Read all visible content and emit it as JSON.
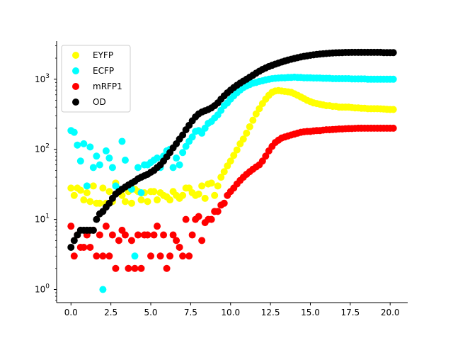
{
  "chart_data": {
    "type": "scatter",
    "title": "",
    "xlabel": "",
    "ylabel": "",
    "x_scale": "linear",
    "y_scale": "log",
    "xlim": [
      -0.9,
      21.1
    ],
    "ylim": [
      0.65,
      3500
    ],
    "x_ticks": [
      {
        "value": 0,
        "label": "0.0"
      },
      {
        "value": 2.5,
        "label": "2.5"
      },
      {
        "value": 5,
        "label": "5.0"
      },
      {
        "value": 7.5,
        "label": "7.5"
      },
      {
        "value": 10,
        "label": "10.0"
      },
      {
        "value": 12.5,
        "label": "12.5"
      },
      {
        "value": 15,
        "label": "15.0"
      },
      {
        "value": 17.5,
        "label": "17.5"
      },
      {
        "value": 20,
        "label": "20.0"
      }
    ],
    "y_ticks": [
      {
        "value": 1,
        "base": "10",
        "exp": "0"
      },
      {
        "value": 10,
        "base": "10",
        "exp": "1"
      },
      {
        "value": 100,
        "base": "10",
        "exp": "2"
      },
      {
        "value": 1000,
        "base": "10",
        "exp": "3"
      }
    ],
    "grid": false,
    "legend_position": "upper-left",
    "series": [
      {
        "name": "EYFP",
        "color": "#ffff00",
        "x": [
          0.0,
          0.2,
          0.4,
          0.6,
          0.8,
          1.0,
          1.2,
          1.4,
          1.6,
          1.8,
          2.0,
          2.2,
          2.4,
          2.6,
          2.8,
          3.0,
          3.2,
          3.4,
          3.6,
          3.8,
          4.0,
          4.2,
          4.4,
          4.6,
          4.8,
          5.0,
          5.2,
          5.4,
          5.6,
          5.8,
          6.0,
          6.2,
          6.4,
          6.6,
          6.8,
          7.0,
          7.2,
          7.4,
          7.6,
          7.8,
          8.0,
          8.2,
          8.4,
          8.6,
          8.8,
          9.0,
          9.2,
          9.4,
          9.6,
          9.8,
          10.0,
          10.2,
          10.4,
          10.6,
          10.8,
          11.0,
          11.2,
          11.4,
          11.6,
          11.8,
          12.0,
          12.2,
          12.4,
          12.6,
          12.8,
          13.0,
          13.2,
          13.4,
          13.6,
          13.8,
          14.0,
          14.2,
          14.4,
          14.6,
          14.8,
          15.0,
          15.2,
          15.4,
          15.6,
          15.8,
          16.0,
          16.2,
          16.4,
          16.6,
          16.8,
          17.0,
          17.2,
          17.4,
          17.6,
          17.8,
          18.0,
          18.2,
          18.4,
          18.6,
          18.8,
          19.0,
          19.2,
          19.4,
          19.6,
          19.8,
          20.0,
          20.2
        ],
        "y": [
          28,
          22,
          28,
          26,
          19,
          24,
          18,
          30,
          17,
          17,
          28,
          17,
          25,
          18,
          33,
          25,
          22,
          18,
          25,
          17,
          27,
          25,
          19,
          24,
          18,
          25,
          25,
          19,
          24,
          22,
          21,
          19,
          25,
          22,
          20,
          22,
          28,
          28,
          24,
          22,
          23,
          30,
          20,
          32,
          33,
          22,
          30,
          40,
          48,
          58,
          68,
          82,
          98,
          120,
          140,
          170,
          210,
          260,
          320,
          380,
          450,
          520,
          590,
          650,
          680,
          690,
          680,
          670,
          660,
          650,
          620,
          590,
          560,
          530,
          500,
          480,
          460,
          450,
          440,
          430,
          420,
          420,
          410,
          410,
          400,
          400,
          400,
          400,
          395,
          390,
          390,
          385,
          385,
          380,
          380,
          380,
          380,
          378,
          375,
          372,
          370,
          370
        ]
      },
      {
        "name": "ECFP",
        "color": "#00ffff",
        "x": [
          0.0,
          0.2,
          0.4,
          0.6,
          0.8,
          1.0,
          1.2,
          1.4,
          1.6,
          1.8,
          2.0,
          2.2,
          2.4,
          2.6,
          2.8,
          3.0,
          3.2,
          3.4,
          3.6,
          3.8,
          4.0,
          4.2,
          4.4,
          4.6,
          4.8,
          5.0,
          5.2,
          5.4,
          5.6,
          5.8,
          6.0,
          6.2,
          6.4,
          6.6,
          6.8,
          7.0,
          7.2,
          7.4,
          7.6,
          7.8,
          8.0,
          8.2,
          8.4,
          8.6,
          8.8,
          9.0,
          9.2,
          9.4,
          9.6,
          9.8,
          10.0,
          10.2,
          10.4,
          10.6,
          10.8,
          11.0,
          11.2,
          11.4,
          11.6,
          11.8,
          12.0,
          12.2,
          12.4,
          12.6,
          12.8,
          13.0,
          13.2,
          13.4,
          13.6,
          13.8,
          14.0,
          14.2,
          14.4,
          14.6,
          14.8,
          15.0,
          15.2,
          15.4,
          15.6,
          15.8,
          16.0,
          16.2,
          16.4,
          16.6,
          16.8,
          17.0,
          17.2,
          17.4,
          17.6,
          17.8,
          18.0,
          18.2,
          18.4,
          18.6,
          18.8,
          19.0,
          19.2,
          19.4,
          19.6,
          19.8,
          20.0,
          20.2
        ],
        "y": [
          185,
          175,
          115,
          68,
          120,
          30,
          108,
          55,
          80,
          60,
          1,
          95,
          75,
          55,
          30,
          27,
          130,
          70,
          30,
          27,
          3,
          55,
          24,
          60,
          60,
          65,
          70,
          75,
          55,
          80,
          95,
          100,
          55,
          75,
          60,
          90,
          110,
          130,
          150,
          180,
          185,
          170,
          200,
          235,
          250,
          280,
          310,
          360,
          420,
          460,
          520,
          580,
          640,
          700,
          760,
          800,
          840,
          880,
          900,
          930,
          950,
          980,
          1000,
          1020,
          1030,
          1040,
          1050,
          1050,
          1060,
          1060,
          1070,
          1060,
          1060,
          1050,
          1050,
          1050,
          1040,
          1040,
          1040,
          1030,
          1030,
          1030,
          1020,
          1020,
          1020,
          1020,
          1020,
          1020,
          1010,
          1010,
          1010,
          1010,
          1010,
          1000,
          1000,
          1000,
          1000,
          1000,
          1000,
          1000,
          1000,
          1000
        ]
      },
      {
        "name": "mRFP1",
        "color": "#ff0000",
        "x": [
          0.0,
          0.2,
          0.4,
          0.6,
          0.8,
          1.0,
          1.2,
          1.4,
          1.6,
          1.8,
          2.0,
          2.2,
          2.4,
          2.6,
          2.8,
          3.0,
          3.2,
          3.4,
          3.6,
          3.8,
          4.0,
          4.2,
          4.4,
          4.6,
          4.8,
          5.0,
          5.2,
          5.4,
          5.6,
          5.8,
          6.0,
          6.2,
          6.4,
          6.6,
          6.8,
          7.0,
          7.2,
          7.4,
          7.6,
          7.8,
          8.0,
          8.2,
          8.4,
          8.6,
          8.8,
          9.0,
          9.2,
          9.4,
          9.6,
          9.8,
          10.0,
          10.2,
          10.4,
          10.6,
          10.8,
          11.0,
          11.2,
          11.4,
          11.6,
          11.8,
          12.0,
          12.2,
          12.4,
          12.6,
          12.8,
          13.0,
          13.2,
          13.4,
          13.6,
          13.8,
          14.0,
          14.2,
          14.4,
          14.6,
          14.8,
          15.0,
          15.2,
          15.4,
          15.6,
          15.8,
          16.0,
          16.2,
          16.4,
          16.6,
          16.8,
          17.0,
          17.2,
          17.4,
          17.6,
          17.8,
          18.0,
          18.2,
          18.4,
          18.6,
          18.8,
          19.0,
          19.2,
          19.4,
          19.6,
          19.8,
          20.0,
          20.2
        ],
        "y": [
          8,
          3,
          6,
          4,
          4,
          6,
          4,
          7,
          3,
          6,
          3,
          8,
          3,
          6,
          2,
          5,
          7,
          6,
          2,
          5,
          2,
          6,
          2,
          6,
          6,
          3,
          6,
          8,
          3,
          6,
          2,
          3,
          6,
          5,
          4,
          3,
          10,
          3,
          6,
          10,
          11,
          5,
          9,
          10,
          10,
          13,
          13,
          16,
          17,
          22,
          25,
          28,
          32,
          36,
          40,
          44,
          48,
          52,
          56,
          60,
          68,
          80,
          95,
          110,
          125,
          135,
          145,
          150,
          155,
          160,
          165,
          170,
          175,
          178,
          180,
          180,
          183,
          185,
          185,
          188,
          190,
          190,
          192,
          193,
          195,
          195,
          197,
          198,
          198,
          199,
          200,
          200,
          200,
          200,
          200,
          200,
          200,
          200,
          200,
          200,
          200,
          200
        ]
      },
      {
        "name": "OD",
        "color": "#000000",
        "x": [
          0.0,
          0.2,
          0.4,
          0.6,
          0.8,
          1.0,
          1.2,
          1.4,
          1.6,
          1.8,
          2.0,
          2.2,
          2.4,
          2.6,
          2.8,
          3.0,
          3.2,
          3.4,
          3.6,
          3.8,
          4.0,
          4.2,
          4.4,
          4.6,
          4.8,
          5.0,
          5.2,
          5.4,
          5.6,
          5.8,
          6.0,
          6.2,
          6.4,
          6.6,
          6.8,
          7.0,
          7.2,
          7.4,
          7.6,
          7.8,
          8.0,
          8.2,
          8.4,
          8.6,
          8.8,
          9.0,
          9.2,
          9.4,
          9.6,
          9.8,
          10.0,
          10.2,
          10.4,
          10.6,
          10.8,
          11.0,
          11.2,
          11.4,
          11.6,
          11.8,
          12.0,
          12.2,
          12.4,
          12.6,
          12.8,
          13.0,
          13.2,
          13.4,
          13.6,
          13.8,
          14.0,
          14.2,
          14.4,
          14.6,
          14.8,
          15.0,
          15.2,
          15.4,
          15.6,
          15.8,
          16.0,
          16.2,
          16.4,
          16.6,
          16.8,
          17.0,
          17.2,
          17.4,
          17.6,
          17.8,
          18.0,
          18.2,
          18.4,
          18.6,
          18.8,
          19.0,
          19.2,
          19.4,
          19.6,
          19.8,
          20.0,
          20.2
        ],
        "y": [
          4,
          5,
          6,
          7,
          7,
          7,
          7,
          7,
          10,
          12,
          13,
          15,
          17,
          20,
          23,
          25,
          27,
          29,
          31,
          33,
          35,
          38,
          40,
          42,
          44,
          47,
          50,
          55,
          60,
          68,
          78,
          90,
          105,
          120,
          140,
          160,
          190,
          220,
          255,
          290,
          320,
          340,
          355,
          370,
          390,
          420,
          460,
          520,
          580,
          640,
          700,
          760,
          820,
          880,
          940,
          1000,
          1070,
          1140,
          1220,
          1300,
          1380,
          1450,
          1520,
          1580,
          1640,
          1700,
          1760,
          1820,
          1880,
          1930,
          1980,
          2030,
          2080,
          2120,
          2160,
          2200,
          2230,
          2260,
          2290,
          2310,
          2330,
          2350,
          2370,
          2380,
          2390,
          2400,
          2410,
          2410,
          2420,
          2420,
          2420,
          2420,
          2420,
          2420,
          2420,
          2420,
          2420,
          2420,
          2400,
          2400,
          2400,
          2400
        ]
      }
    ]
  }
}
